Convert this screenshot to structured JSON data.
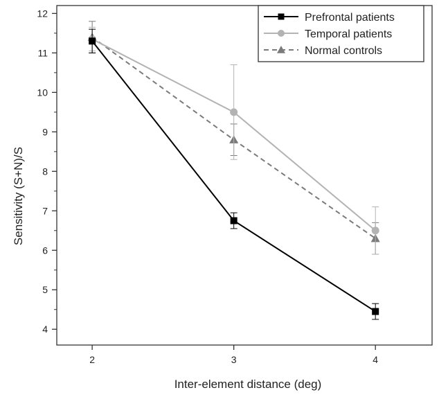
{
  "chart_data": {
    "type": "line",
    "title": "",
    "xlabel": "Inter-element distance (deg)",
    "ylabel": "Sensitivity  (S+N)/S",
    "x": [
      2,
      3,
      4
    ],
    "xticks": [
      "2",
      "3",
      "4"
    ],
    "xlim": [
      1.75,
      4.4
    ],
    "yticks": [
      "4",
      "5",
      "6",
      "7",
      "8",
      "9",
      "10",
      "11",
      "12"
    ],
    "ylim": [
      3.6,
      12.2
    ],
    "grid": false,
    "legend_position": "top-right",
    "series": [
      {
        "name": "Prefrontal patients",
        "color": "#000000",
        "marker": "square",
        "dash": "solid",
        "values": [
          11.3,
          6.75,
          4.45
        ],
        "errors": [
          0.3,
          0.2,
          0.2
        ]
      },
      {
        "name": "Temporal patients",
        "color": "#b3b3b3",
        "marker": "circle",
        "dash": "solid",
        "values": [
          11.35,
          9.5,
          6.5
        ],
        "errors": [
          0.3,
          1.2,
          0.6
        ]
      },
      {
        "name": "Normal controls",
        "color": "#7a7a7a",
        "marker": "triangle",
        "dash": "dashed",
        "values": [
          11.4,
          8.8,
          6.3
        ],
        "errors": [
          0.4,
          0.4,
          0.4
        ]
      }
    ]
  }
}
